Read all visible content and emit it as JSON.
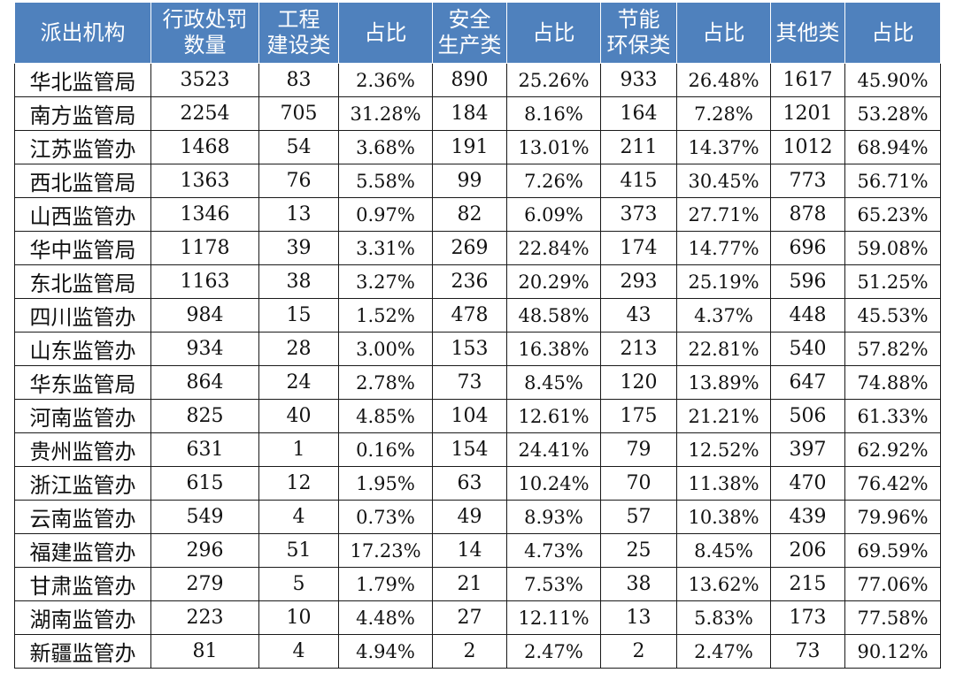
{
  "table": {
    "headers": [
      {
        "lines": [
          "派出机构"
        ]
      },
      {
        "lines": [
          "行政处罚",
          "数量"
        ]
      },
      {
        "lines": [
          "工程",
          "建设类"
        ]
      },
      {
        "lines": [
          "占比"
        ]
      },
      {
        "lines": [
          "安全",
          "生产类"
        ]
      },
      {
        "lines": [
          "占比"
        ]
      },
      {
        "lines": [
          "节能",
          "环保类"
        ]
      },
      {
        "lines": [
          "占比"
        ]
      },
      {
        "lines": [
          "其他类"
        ]
      },
      {
        "lines": [
          "占比"
        ]
      }
    ],
    "rows": [
      [
        "华北监管局",
        "3523",
        "83",
        "2.36%",
        "890",
        "25.26%",
        "933",
        "26.48%",
        "1617",
        "45.90%"
      ],
      [
        "南方监管局",
        "2254",
        "705",
        "31.28%",
        "184",
        "8.16%",
        "164",
        "7.28%",
        "1201",
        "53.28%"
      ],
      [
        "江苏监管办",
        "1468",
        "54",
        "3.68%",
        "191",
        "13.01%",
        "211",
        "14.37%",
        "1012",
        "68.94%"
      ],
      [
        "西北监管局",
        "1363",
        "76",
        "5.58%",
        "99",
        "7.26%",
        "415",
        "30.45%",
        "773",
        "56.71%"
      ],
      [
        "山西监管办",
        "1346",
        "13",
        "0.97%",
        "82",
        "6.09%",
        "373",
        "27.71%",
        "878",
        "65.23%"
      ],
      [
        "华中监管局",
        "1178",
        "39",
        "3.31%",
        "269",
        "22.84%",
        "174",
        "14.77%",
        "696",
        "59.08%"
      ],
      [
        "东北监管局",
        "1163",
        "38",
        "3.27%",
        "236",
        "20.29%",
        "293",
        "25.19%",
        "596",
        "51.25%"
      ],
      [
        "四川监管办",
        "984",
        "15",
        "1.52%",
        "478",
        "48.58%",
        "43",
        "4.37%",
        "448",
        "45.53%"
      ],
      [
        "山东监管办",
        "934",
        "28",
        "3.00%",
        "153",
        "16.38%",
        "213",
        "22.81%",
        "540",
        "57.82%"
      ],
      [
        "华东监管局",
        "864",
        "24",
        "2.78%",
        "73",
        "8.45%",
        "120",
        "13.89%",
        "647",
        "74.88%"
      ],
      [
        "河南监管办",
        "825",
        "40",
        "4.85%",
        "104",
        "12.61%",
        "175",
        "21.21%",
        "506",
        "61.33%"
      ],
      [
        "贵州监管办",
        "631",
        "1",
        "0.16%",
        "154",
        "24.41%",
        "79",
        "12.52%",
        "397",
        "62.92%"
      ],
      [
        "浙江监管办",
        "615",
        "12",
        "1.95%",
        "63",
        "10.24%",
        "70",
        "11.38%",
        "470",
        "76.42%"
      ],
      [
        "云南监管办",
        "549",
        "4",
        "0.73%",
        "49",
        "8.93%",
        "57",
        "10.38%",
        "439",
        "79.96%"
      ],
      [
        "福建监管办",
        "296",
        "51",
        "17.23%",
        "14",
        "4.73%",
        "25",
        "8.45%",
        "206",
        "69.59%"
      ],
      [
        "甘肃监管办",
        "279",
        "5",
        "1.79%",
        "21",
        "7.53%",
        "38",
        "13.62%",
        "215",
        "77.06%"
      ],
      [
        "湖南监管办",
        "223",
        "10",
        "4.48%",
        "27",
        "12.11%",
        "13",
        "5.83%",
        "173",
        "77.58%"
      ],
      [
        "新疆监管办",
        "81",
        "4",
        "4.94%",
        "2",
        "2.47%",
        "2",
        "2.47%",
        "73",
        "90.12%"
      ]
    ]
  },
  "colors": {
    "header_bg": "#4f81bd",
    "header_text": "#ffffff",
    "grid_line": "#1a1a1a"
  }
}
